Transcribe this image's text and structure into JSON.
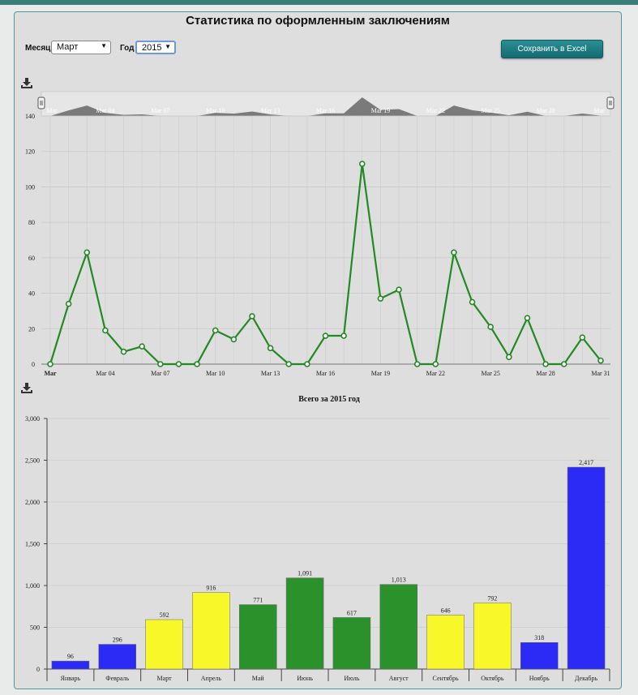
{
  "page": {
    "title": "Статистика по оформленным заключениям",
    "month_label": "Месяц",
    "month_value": "Март",
    "year_label": "Год",
    "year_value": "2015",
    "excel_button": "Сохранить в Excel",
    "download_icon": "download-icon"
  },
  "chart_data": [
    {
      "type": "line",
      "title": "",
      "x": [
        "Mar 01",
        "Mar 02",
        "Mar 03",
        "Mar 04",
        "Mar 05",
        "Mar 06",
        "Mar 07",
        "Mar 08",
        "Mar 09",
        "Mar 10",
        "Mar 11",
        "Mar 12",
        "Mar 13",
        "Mar 14",
        "Mar 15",
        "Mar 16",
        "Mar 17",
        "Mar 18",
        "Mar 19",
        "Mar 20",
        "Mar 21",
        "Mar 22",
        "Mar 23",
        "Mar 24",
        "Mar 25",
        "Mar 26",
        "Mar 27",
        "Mar 28",
        "Mar 29",
        "Mar 30",
        "Mar 31"
      ],
      "values": [
        0,
        34,
        63,
        19,
        7,
        10,
        0,
        0,
        0,
        19,
        14,
        27,
        9,
        0,
        0,
        16,
        16,
        113,
        37,
        42,
        0,
        0,
        63,
        35,
        21,
        4,
        26,
        0,
        0,
        15,
        2
      ],
      "tick_labels": [
        "Mar",
        "Mar 04",
        "Mar 07",
        "Mar 10",
        "Mar 13",
        "Mar 16",
        "Mar 19",
        "Mar 22",
        "Mar 25",
        "Mar 28",
        "Mar 31"
      ],
      "navigator_labels": [
        "Mar",
        "Mar 04",
        "Mar 07",
        "Mar 10",
        "Mar 13",
        "Mar 16",
        "Mar 19",
        "Mar 22",
        "Mar 25",
        "Mar 28",
        "Mar"
      ],
      "y_ticks": [
        0,
        20,
        40,
        60,
        80,
        100,
        120,
        140
      ],
      "ylim": [
        0,
        140
      ],
      "color": "#238a23",
      "grid": true
    },
    {
      "type": "bar",
      "title": "Всего за 2015 год",
      "categories": [
        "Январь",
        "Февраль",
        "Март",
        "Апрель",
        "Май",
        "Июнь",
        "Июль",
        "Август",
        "Сентябрь",
        "Октябрь",
        "Ноябрь",
        "Декабрь"
      ],
      "values": [
        96,
        296,
        592,
        916,
        771,
        1091,
        617,
        1013,
        646,
        792,
        318,
        2417
      ],
      "value_labels": [
        "96",
        "296",
        "592",
        "916",
        "771",
        "1,091",
        "617",
        "1,013",
        "646",
        "792",
        "318",
        "2,417"
      ],
      "colors": [
        "#2b2bf5",
        "#2b2bf5",
        "#f7f72a",
        "#f7f72a",
        "#2b912b",
        "#2b912b",
        "#2b912b",
        "#2b912b",
        "#f7f72a",
        "#f7f72a",
        "#2b2bf5",
        "#2b2bf5"
      ],
      "y_ticks": [
        "0",
        "500",
        "1,000",
        "1,500",
        "2,000",
        "2,500",
        "3,000"
      ],
      "ylim": [
        0,
        3000
      ],
      "grid": true
    }
  ]
}
